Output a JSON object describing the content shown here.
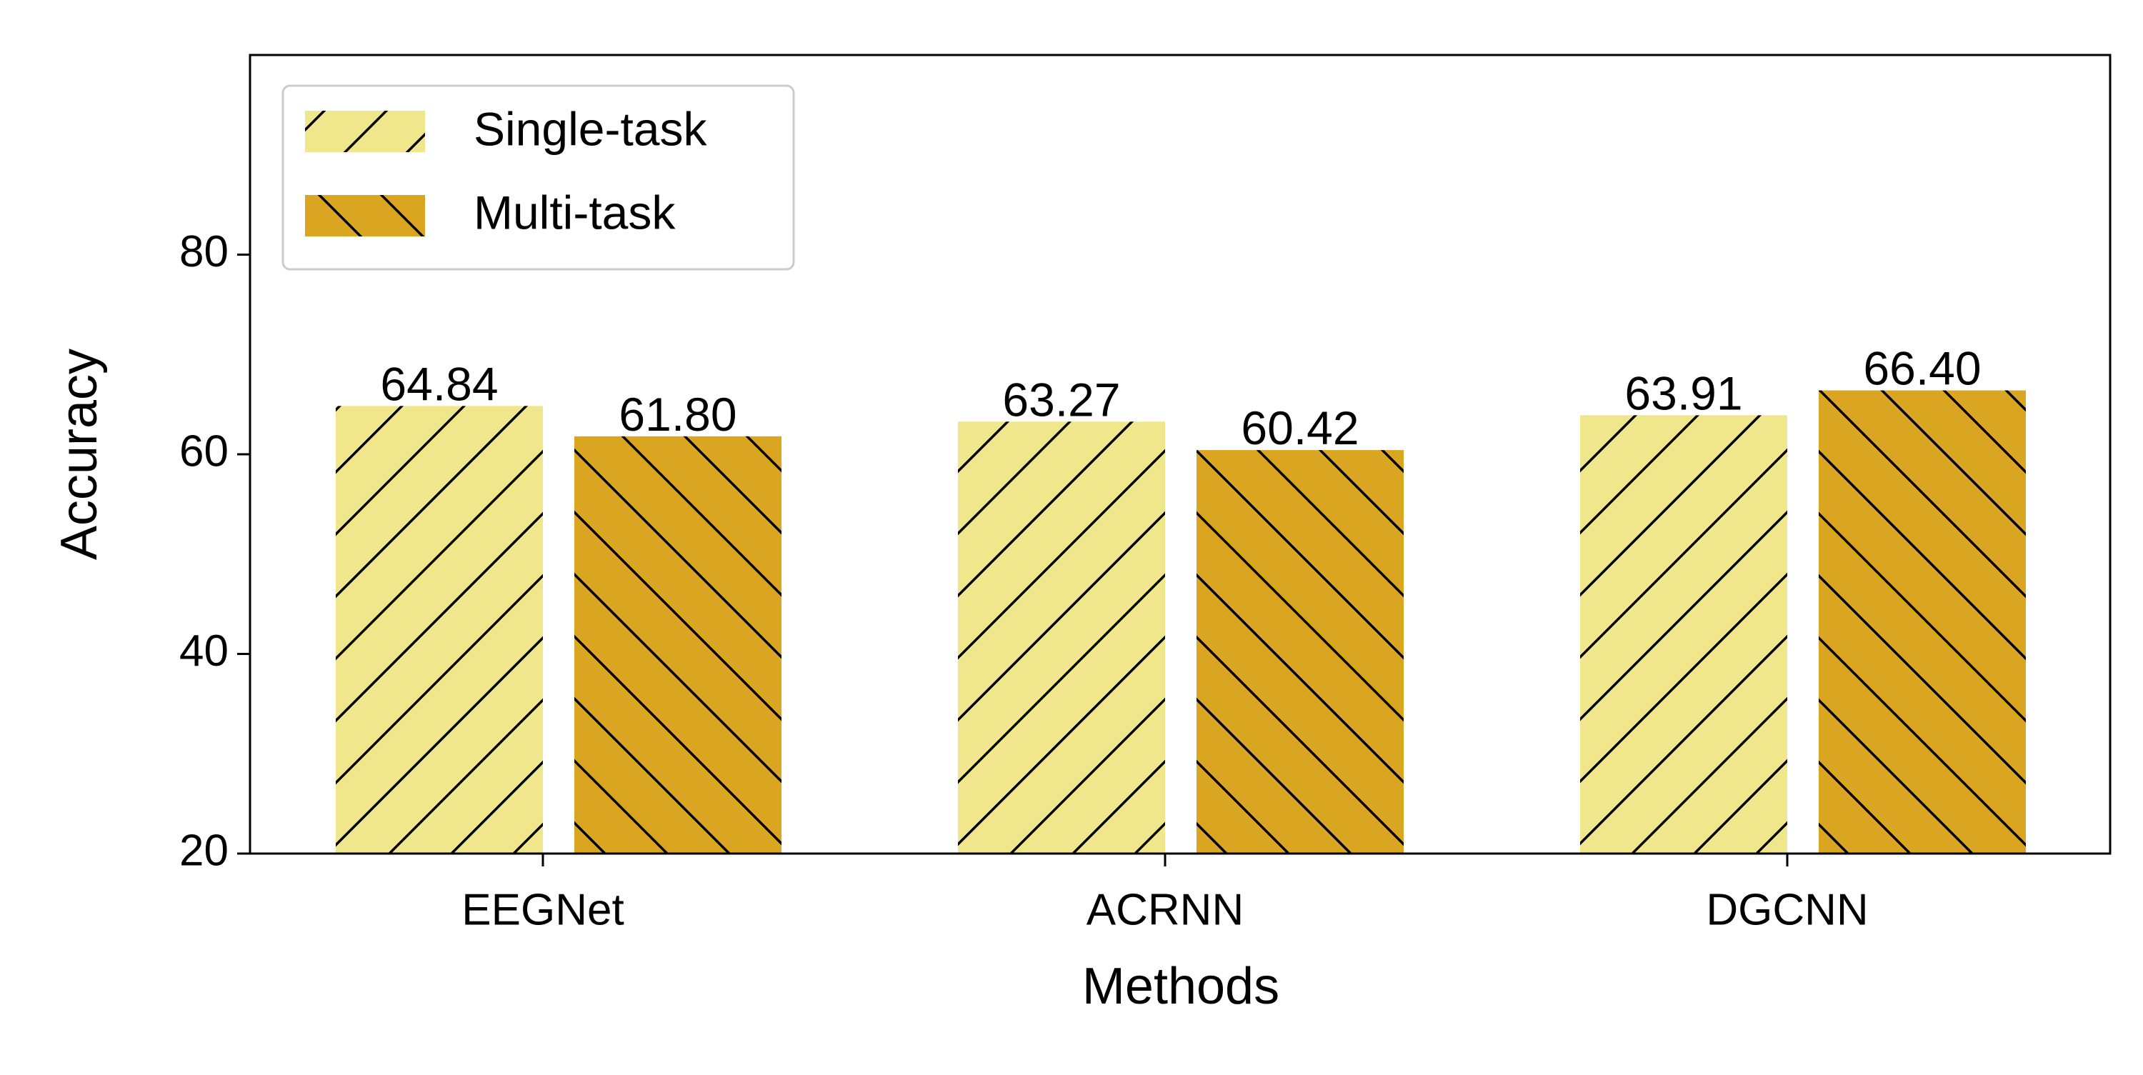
{
  "chart_data": {
    "type": "bar",
    "x_label": "Methods",
    "y_label": "Accuracy",
    "categories": [
      "EEGNet",
      "ACRNN",
      "DGCNN"
    ],
    "series": [
      {
        "name": "Single-task",
        "color": "#f0e68c",
        "hatch": "/",
        "values": [
          64.84,
          63.27,
          63.91
        ],
        "value_labels": [
          "64.84",
          "63.27",
          "63.91"
        ]
      },
      {
        "name": "Multi-task",
        "color": "#daa520",
        "hatch": "\\",
        "values": [
          61.8,
          60.42,
          66.4
        ],
        "value_labels": [
          "61.80",
          "60.42",
          "66.40"
        ]
      }
    ],
    "ylim": [
      20,
      100
    ],
    "yticks": [
      20,
      40,
      60,
      80
    ],
    "grid": false,
    "legend": "upper left"
  }
}
